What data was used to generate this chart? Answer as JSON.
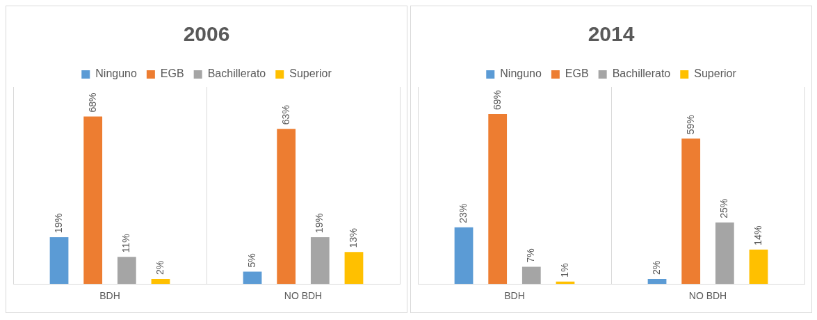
{
  "chart_data": [
    {
      "type": "bar",
      "title": "2006",
      "categories": [
        "BDH",
        "NO BDH"
      ],
      "legend": "top",
      "grid": "x",
      "series": [
        {
          "name": "Ninguno",
          "color": "#5b9bd5",
          "values": [
            19,
            5
          ],
          "value_labels": [
            "19%",
            "5%"
          ]
        },
        {
          "name": "EGB",
          "color": "#ed7d31",
          "values": [
            68,
            63
          ],
          "value_labels": [
            "68%",
            "63%"
          ]
        },
        {
          "name": "Bachillerato",
          "color": "#a5a5a5",
          "values": [
            11,
            19
          ],
          "value_labels": [
            "11%",
            "19%"
          ]
        },
        {
          "name": "Superior",
          "color": "#ffc000",
          "values": [
            2,
            13
          ],
          "value_labels": [
            "2%",
            "13%"
          ]
        }
      ]
    },
    {
      "type": "bar",
      "title": "2014",
      "categories": [
        "BDH",
        "NO BDH"
      ],
      "legend": "top",
      "grid": "x",
      "series": [
        {
          "name": "Ninguno",
          "color": "#5b9bd5",
          "values": [
            23,
            2
          ],
          "value_labels": [
            "23%",
            "2%"
          ]
        },
        {
          "name": "EGB",
          "color": "#ed7d31",
          "values": [
            69,
            59
          ],
          "value_labels": [
            "69%",
            "59%"
          ]
        },
        {
          "name": "Bachillerato",
          "color": "#a5a5a5",
          "values": [
            7,
            25
          ],
          "value_labels": [
            "7%",
            "25%"
          ]
        },
        {
          "name": "Superior",
          "color": "#ffc000",
          "values": [
            1,
            14
          ],
          "value_labels": [
            "1%",
            "14%"
          ]
        }
      ]
    }
  ]
}
